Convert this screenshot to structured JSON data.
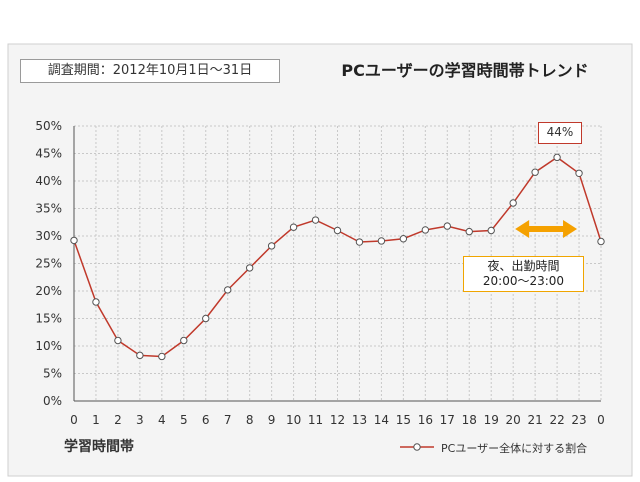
{
  "period_label": "調査期間：2012年10月1日〜31日",
  "chart_title": "PCユーザーの学習時間帯トレンド",
  "peak_label": "44%",
  "annotation": {
    "line1": "夜、出勤時間",
    "line2": "20:00〜23:00"
  },
  "colors": {
    "line": "#c0392b",
    "marker_fill": "#ffffff",
    "grid": "#c8c8c8",
    "axis": "#555555",
    "arrow": "#f5a100",
    "panel_bg": "#f4f4f4"
  },
  "chart_data": {
    "type": "line",
    "title": "PCユーザーの学習時間帯トレンド",
    "xlabel": "学習時間帯",
    "ylabel": "",
    "x": [
      "0",
      "1",
      "2",
      "3",
      "4",
      "5",
      "6",
      "7",
      "8",
      "9",
      "10",
      "11",
      "12",
      "13",
      "14",
      "15",
      "16",
      "17",
      "18",
      "19",
      "20",
      "21",
      "22",
      "23",
      "0"
    ],
    "y_ticks": [
      "0%",
      "5%",
      "10%",
      "15%",
      "20%",
      "25%",
      "30%",
      "35%",
      "40%",
      "45%",
      "50%"
    ],
    "ylim": [
      0,
      50
    ],
    "grid": true,
    "legend_position": "bottom-right",
    "series": [
      {
        "name": "PCユーザー全体に対する割合",
        "values": [
          29.2,
          18,
          11,
          8.3,
          8.1,
          11,
          15,
          20.2,
          24.2,
          28.2,
          31.6,
          32.9,
          31,
          28.9,
          29.1,
          29.5,
          31.1,
          31.8,
          30.8,
          31,
          36,
          41.6,
          44.3,
          41.4,
          29
        ]
      }
    ]
  }
}
